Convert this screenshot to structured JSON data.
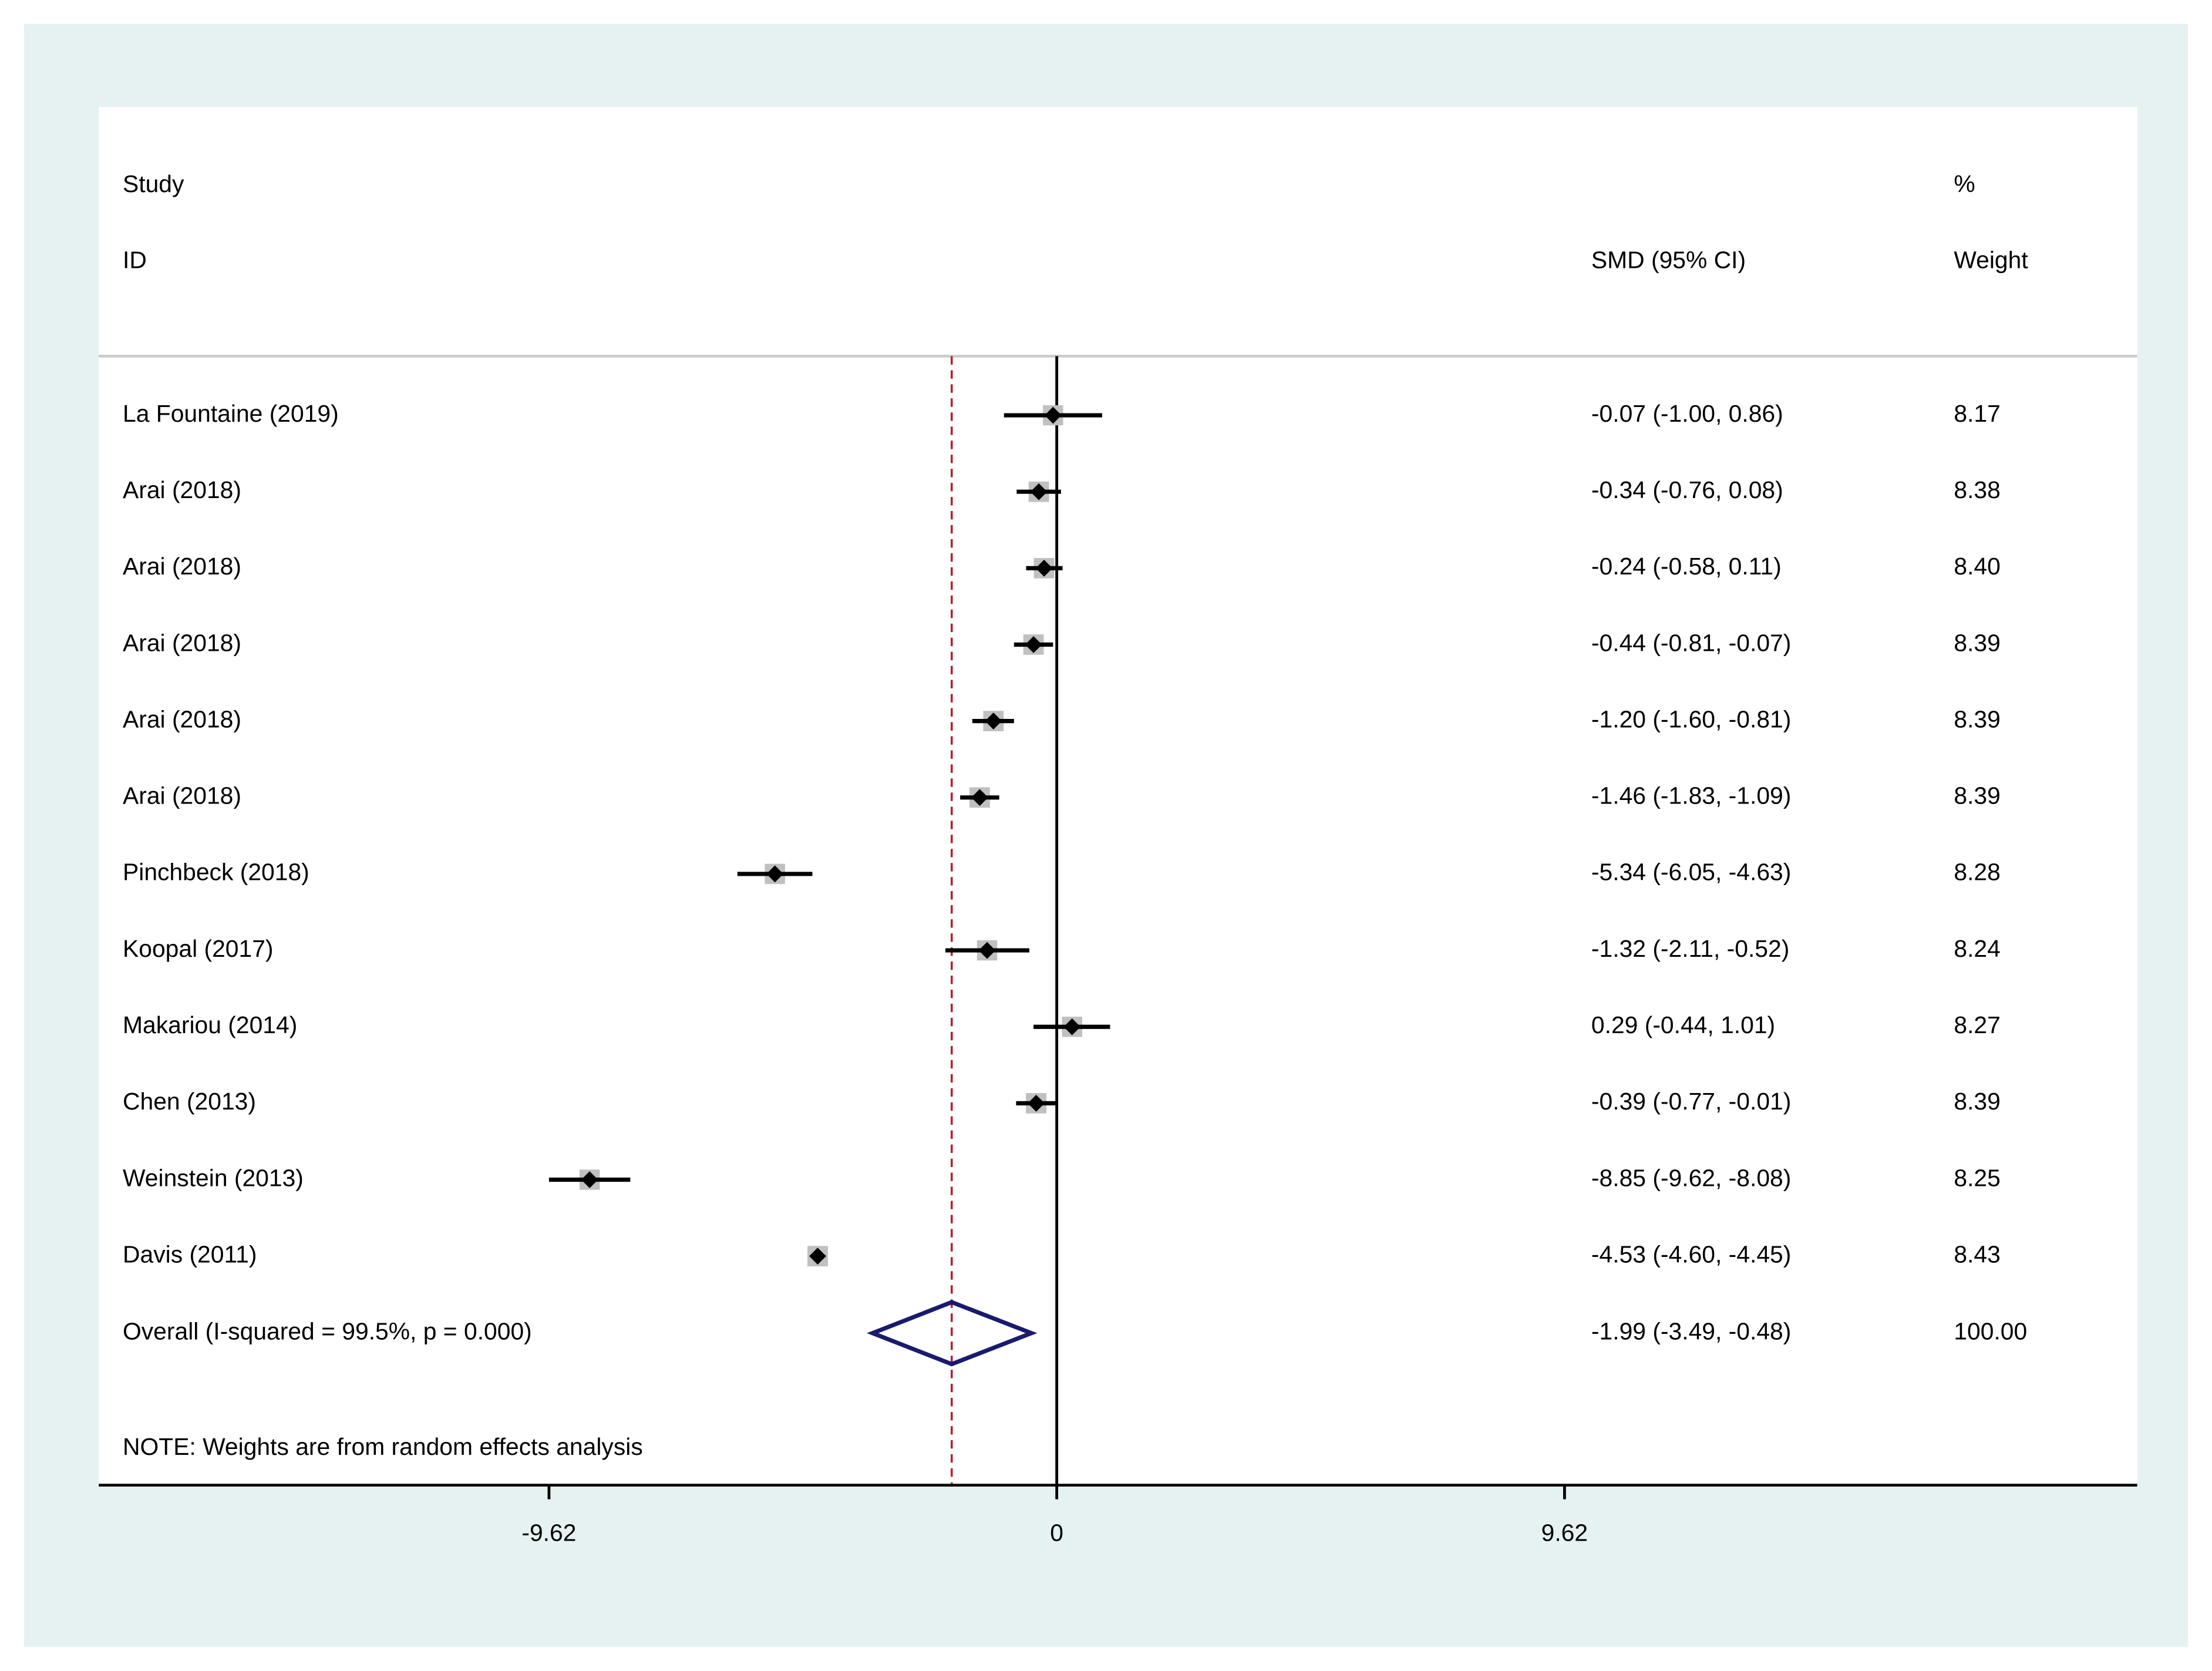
{
  "chart_data": {
    "type": "forest",
    "header_study": "Study",
    "header_id": "ID",
    "header_ci": "SMD (95% CI)",
    "header_pct": "%",
    "header_weight": "Weight",
    "note": "NOTE: Weights are from random effects analysis",
    "categories": [
      "La Fountaine (2019)",
      "Arai (2018)",
      "Arai (2018)",
      "Arai (2018)",
      "Arai (2018)",
      "Arai (2018)",
      "Pinchbeck (2018)",
      "Koopal (2017)",
      "Makariou (2014)",
      "Chen (2013)",
      "Weinstein (2013)",
      "Davis (2011)"
    ],
    "values": [
      -0.07,
      -0.34,
      -0.24,
      -0.44,
      -1.2,
      -1.46,
      -5.34,
      -1.32,
      0.29,
      -0.39,
      -8.85,
      -4.53
    ],
    "lower": [
      -1.0,
      -0.76,
      -0.58,
      -0.81,
      -1.6,
      -1.83,
      -6.05,
      -2.11,
      -0.44,
      -0.77,
      -9.62,
      -4.6
    ],
    "upper": [
      0.86,
      0.08,
      0.11,
      -0.07,
      -0.81,
      -1.09,
      -4.63,
      -0.52,
      1.01,
      -0.01,
      -8.08,
      -4.45
    ],
    "value_labels": [
      "-0.07 (-1.00, 0.86)",
      "-0.34 (-0.76, 0.08)",
      "-0.24 (-0.58, 0.11)",
      "-0.44 (-0.81, -0.07)",
      "-1.20 (-1.60, -0.81)",
      "-1.46 (-1.83, -1.09)",
      "-5.34 (-6.05, -4.63)",
      "-1.32 (-2.11, -0.52)",
      "0.29 (-0.44, 1.01)",
      "-0.39 (-0.77, -0.01)",
      "-8.85 (-9.62, -8.08)",
      "-4.53 (-4.60, -4.45)"
    ],
    "weights": [
      8.17,
      8.38,
      8.4,
      8.39,
      8.39,
      8.39,
      8.28,
      8.24,
      8.27,
      8.39,
      8.25,
      8.43
    ],
    "weight_labels": [
      "8.17",
      "8.38",
      "8.40",
      "8.39",
      "8.39",
      "8.39",
      "8.28",
      "8.24",
      "8.27",
      "8.39",
      "8.25",
      "8.43"
    ],
    "overall": {
      "label": "Overall  (I-squared = 99.5%, p = 0.000)",
      "value": -1.99,
      "lower": -3.49,
      "upper": -0.48,
      "value_label": "-1.99 (-3.49, -0.48)",
      "weight": 100,
      "weight_label": "100.00"
    },
    "xlim": [
      -18.15,
      20.47
    ],
    "xticks": [
      -9.62,
      0,
      9.62
    ],
    "box_color": "#c0c0c0",
    "point_color": "#000000",
    "diamond_color": "#1a1a6e",
    "overall_line_color": "#b22234"
  }
}
